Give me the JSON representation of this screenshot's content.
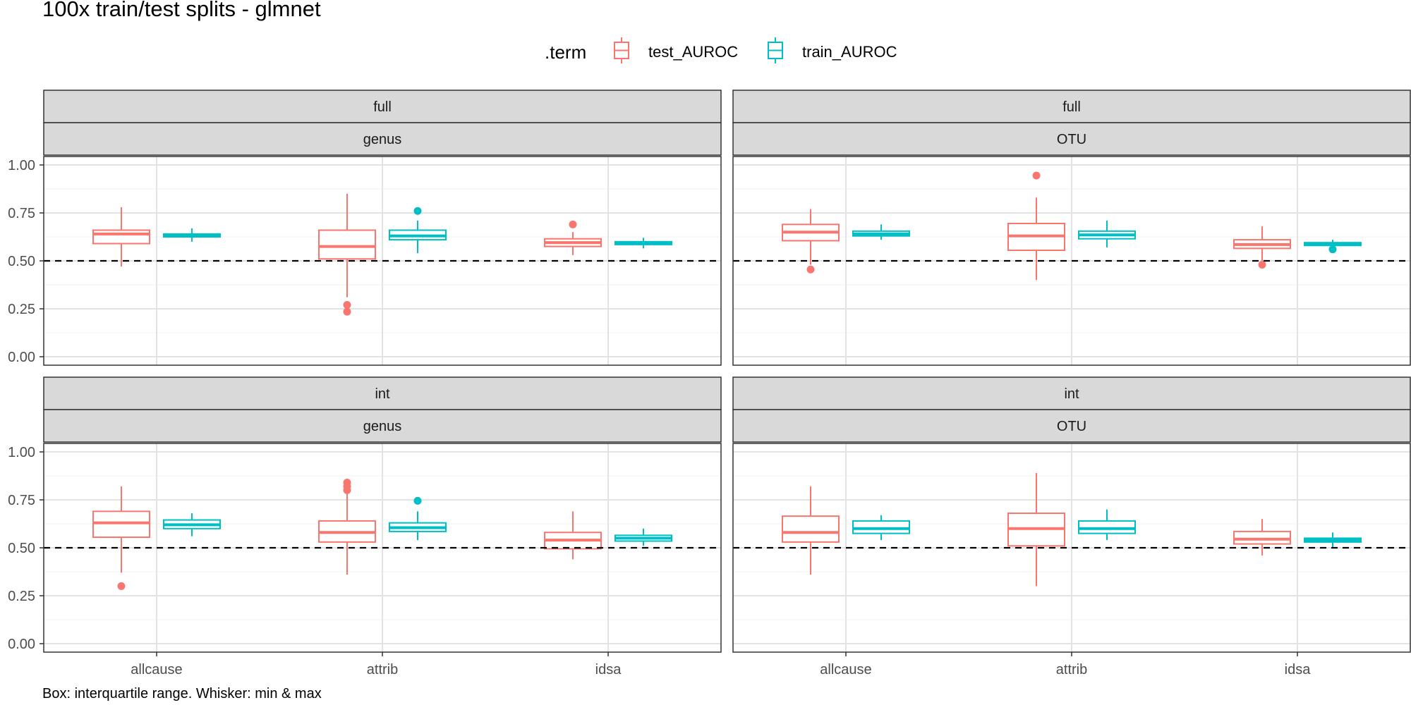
{
  "chart_data": {
    "type": "boxplot",
    "title": "100x train/test splits - glmnet",
    "caption": "Box: interquartile range. Whisker: min & max",
    "legend": {
      "title": ".term",
      "placement": "top",
      "entries": [
        {
          "name": "test_AUROC",
          "color": "#F8766D"
        },
        {
          "name": "train_AUROC",
          "color": "#00BFC4"
        }
      ]
    },
    "categories": [
      "allcause",
      "attrib",
      "idsa"
    ],
    "ylim": [
      0,
      1.0
    ],
    "yticks": [
      "0.00",
      "0.25",
      "0.50",
      "0.75",
      "1.00"
    ],
    "reference_line": {
      "y": 0.5,
      "style": "dashed"
    },
    "grid": true,
    "facets": [
      {
        "row": "full",
        "col": "genus",
        "series": [
          {
            "name": "test_AUROC",
            "boxes": [
              {
                "category": "allcause",
                "min": 0.47,
                "q1": 0.59,
                "median": 0.64,
                "q3": 0.66,
                "max": 0.78,
                "outliers": []
              },
              {
                "category": "attrib",
                "min": 0.31,
                "q1": 0.51,
                "median": 0.575,
                "q3": 0.66,
                "max": 0.85,
                "outliers": [
                  0.27,
                  0.235
                ]
              },
              {
                "category": "idsa",
                "min": 0.53,
                "q1": 0.575,
                "median": 0.595,
                "q3": 0.615,
                "max": 0.65,
                "outliers": [
                  0.69
                ]
              }
            ]
          },
          {
            "name": "train_AUROC",
            "boxes": [
              {
                "category": "allcause",
                "min": 0.6,
                "q1": 0.625,
                "median": 0.635,
                "q3": 0.64,
                "max": 0.67,
                "outliers": []
              },
              {
                "category": "attrib",
                "min": 0.54,
                "q1": 0.61,
                "median": 0.63,
                "q3": 0.66,
                "max": 0.71,
                "outliers": [
                  0.76
                ]
              },
              {
                "category": "idsa",
                "min": 0.565,
                "q1": 0.585,
                "median": 0.59,
                "q3": 0.6,
                "max": 0.62,
                "outliers": []
              }
            ]
          }
        ]
      },
      {
        "row": "full",
        "col": "OTU",
        "series": [
          {
            "name": "test_AUROC",
            "boxes": [
              {
                "category": "allcause",
                "min": 0.48,
                "q1": 0.605,
                "median": 0.65,
                "q3": 0.69,
                "max": 0.77,
                "outliers": [
                  0.455
                ]
              },
              {
                "category": "attrib",
                "min": 0.4,
                "q1": 0.555,
                "median": 0.63,
                "q3": 0.695,
                "max": 0.83,
                "outliers": [
                  0.945
                ]
              },
              {
                "category": "idsa",
                "min": 0.5,
                "q1": 0.565,
                "median": 0.585,
                "q3": 0.61,
                "max": 0.68,
                "outliers": [
                  0.48
                ]
              }
            ]
          },
          {
            "name": "train_AUROC",
            "boxes": [
              {
                "category": "allcause",
                "min": 0.61,
                "q1": 0.63,
                "median": 0.64,
                "q3": 0.655,
                "max": 0.69,
                "outliers": []
              },
              {
                "category": "attrib",
                "min": 0.57,
                "q1": 0.615,
                "median": 0.635,
                "q3": 0.655,
                "max": 0.71,
                "outliers": []
              },
              {
                "category": "idsa",
                "min": 0.57,
                "q1": 0.58,
                "median": 0.59,
                "q3": 0.595,
                "max": 0.61,
                "outliers": [
                  0.56
                ]
              }
            ]
          }
        ]
      },
      {
        "row": "int",
        "col": "genus",
        "series": [
          {
            "name": "test_AUROC",
            "boxes": [
              {
                "category": "allcause",
                "min": 0.37,
                "q1": 0.555,
                "median": 0.63,
                "q3": 0.69,
                "max": 0.82,
                "outliers": [
                  0.3
                ]
              },
              {
                "category": "attrib",
                "min": 0.36,
                "q1": 0.53,
                "median": 0.58,
                "q3": 0.64,
                "max": 0.78,
                "outliers": [
                  0.8,
                  0.82,
                  0.84
                ]
              },
              {
                "category": "idsa",
                "min": 0.44,
                "q1": 0.495,
                "median": 0.54,
                "q3": 0.58,
                "max": 0.69,
                "outliers": []
              }
            ]
          },
          {
            "name": "train_AUROC",
            "boxes": [
              {
                "category": "allcause",
                "min": 0.56,
                "q1": 0.6,
                "median": 0.62,
                "q3": 0.645,
                "max": 0.68,
                "outliers": []
              },
              {
                "category": "attrib",
                "min": 0.54,
                "q1": 0.585,
                "median": 0.605,
                "q3": 0.63,
                "max": 0.69,
                "outliers": [
                  0.745
                ]
              },
              {
                "category": "idsa",
                "min": 0.51,
                "q1": 0.535,
                "median": 0.55,
                "q3": 0.565,
                "max": 0.6,
                "outliers": []
              }
            ]
          }
        ]
      },
      {
        "row": "int",
        "col": "OTU",
        "series": [
          {
            "name": "test_AUROC",
            "boxes": [
              {
                "category": "allcause",
                "min": 0.36,
                "q1": 0.53,
                "median": 0.58,
                "q3": 0.665,
                "max": 0.82,
                "outliers": []
              },
              {
                "category": "attrib",
                "min": 0.3,
                "q1": 0.51,
                "median": 0.6,
                "q3": 0.68,
                "max": 0.89,
                "outliers": []
              },
              {
                "category": "idsa",
                "min": 0.46,
                "q1": 0.52,
                "median": 0.545,
                "q3": 0.585,
                "max": 0.65,
                "outliers": []
              }
            ]
          },
          {
            "name": "train_AUROC",
            "boxes": [
              {
                "category": "allcause",
                "min": 0.54,
                "q1": 0.575,
                "median": 0.6,
                "q3": 0.64,
                "max": 0.67,
                "outliers": []
              },
              {
                "category": "attrib",
                "min": 0.54,
                "q1": 0.575,
                "median": 0.6,
                "q3": 0.64,
                "max": 0.7,
                "outliers": []
              },
              {
                "category": "idsa",
                "min": 0.5,
                "q1": 0.53,
                "median": 0.54,
                "q3": 0.55,
                "max": 0.58,
                "outliers": []
              }
            ]
          }
        ]
      }
    ]
  }
}
